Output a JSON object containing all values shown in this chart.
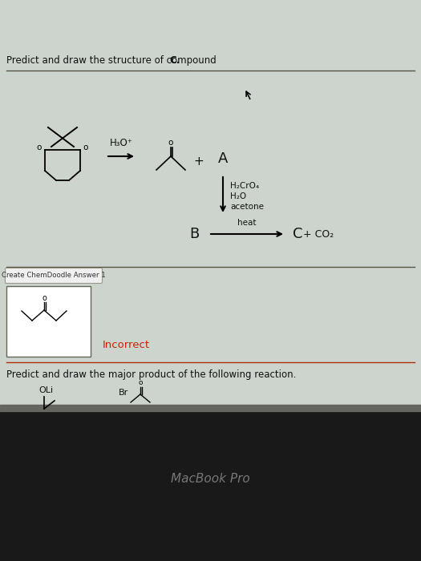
{
  "bg_color": "#cdd4cd",
  "bg_dark": "#191919",
  "title1": "Predict and draw the structure of compound ",
  "title1_bold": "C.",
  "title2": "Predict and draw the major product of the following reaction.",
  "chemdoodle_label": "Create ChemDoodle Answer 1",
  "incorrect_text": "Incorrect",
  "incorrect_color": "#cc2200",
  "macbook_text": "MacBook Pro",
  "macbook_color": "#777777",
  "reagent1": "H₃O⁺",
  "reagent2_line1": "H₂CrO₄",
  "reagent2_line2": "H₂O",
  "reagent2_line3": "acetone",
  "reagent3": "heat",
  "label_A": "A",
  "label_B": "B",
  "label_C": "C",
  "plus": "+",
  "co2": "+ CO₂",
  "fig_w": 5.25,
  "fig_h": 7.0,
  "dpi": 100
}
